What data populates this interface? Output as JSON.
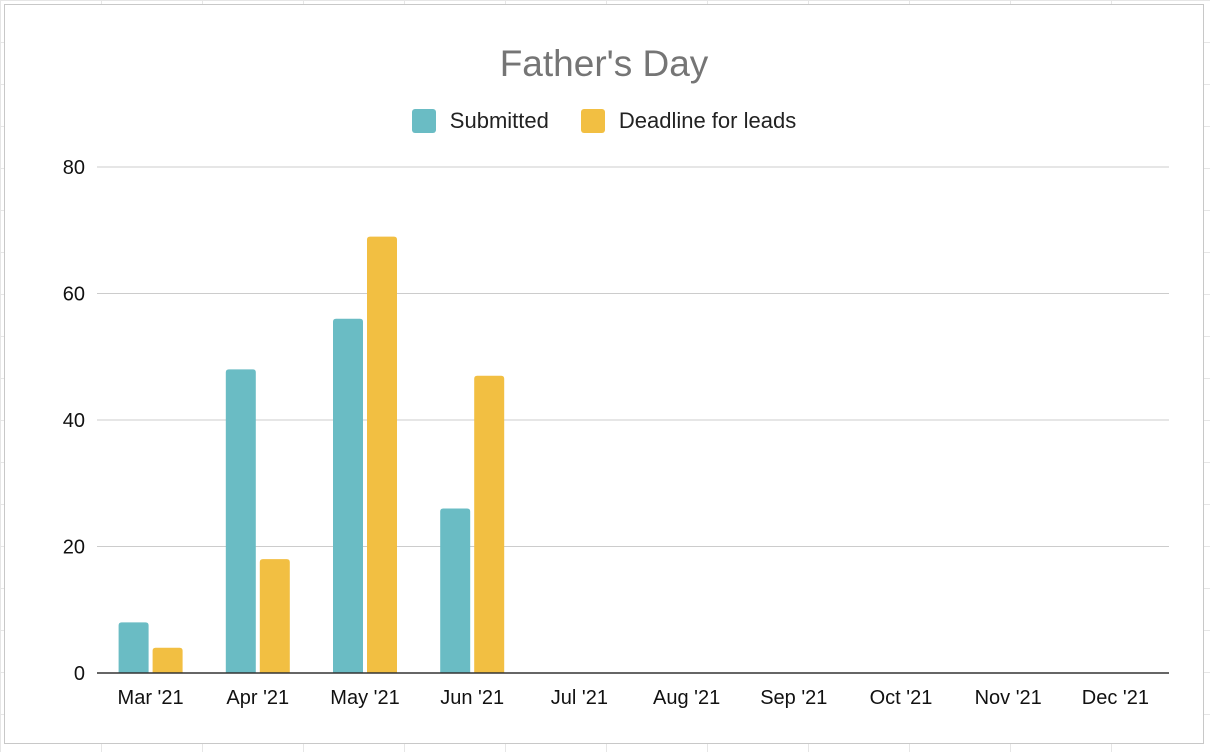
{
  "chart_data": {
    "type": "bar",
    "title": "Father's Day",
    "xlabel": "",
    "ylabel": "",
    "categories": [
      "Mar '21",
      "Apr '21",
      "May '21",
      "Jun '21",
      "Jul '21",
      "Aug '21",
      "Sep '21",
      "Oct '21",
      "Nov '21",
      "Dec '21"
    ],
    "series": [
      {
        "name": "Submitted",
        "color": "#6abcc4",
        "values": [
          8,
          48,
          56,
          26,
          null,
          null,
          null,
          null,
          null,
          null
        ]
      },
      {
        "name": "Deadline for leads",
        "color": "#f2bf42",
        "values": [
          4,
          18,
          69,
          47,
          null,
          null,
          null,
          null,
          null,
          null
        ]
      }
    ],
    "ylim": [
      0,
      80
    ],
    "yticks": [
      0,
      20,
      40,
      60,
      80
    ],
    "grid": true,
    "legend_position": "top-center"
  }
}
